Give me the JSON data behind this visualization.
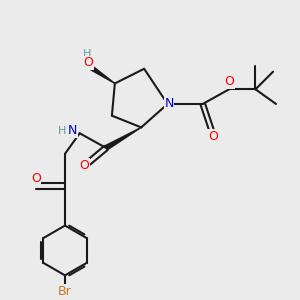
{
  "bg_color": "#ebebeb",
  "bond_color": "#1a1a1a",
  "N_color": "#0000cd",
  "O_color": "#ff0000",
  "Br_color": "#cc7722",
  "H_color": "#5f9ea0",
  "line_width": 1.5,
  "figsize": [
    3.0,
    3.0
  ],
  "dpi": 100,
  "xlim": [
    0,
    10
  ],
  "ylim": [
    0,
    10
  ]
}
